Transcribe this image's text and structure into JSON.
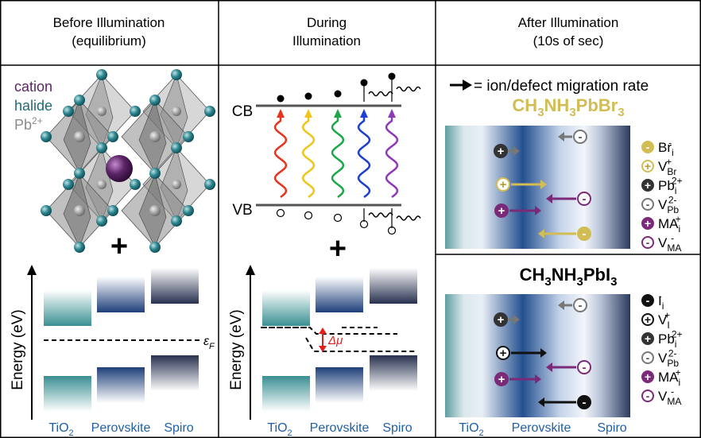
{
  "columns": [
    {
      "title": [
        "Before Illumination",
        "(equilibrium)"
      ]
    },
    {
      "title": [
        "During",
        "Illumination"
      ]
    },
    {
      "title": [
        "After Illumination",
        "(10s of sec)"
      ]
    }
  ],
  "crystal_labels": [
    {
      "base": "cation",
      "color": "#5b2466"
    },
    {
      "base": "halide",
      "color": "#1f6b74"
    },
    {
      "base": "Pb",
      "sup": "2+",
      "color": "#8a8a8a"
    }
  ],
  "plus": "+",
  "energy_axis_label": "Energy (eV)",
  "fermi_label": {
    "base": "ε",
    "sub": "F"
  },
  "layers": [
    {
      "base": "TiO",
      "sub": "2"
    },
    {
      "base": "Perovskite"
    },
    {
      "base": "Spiro"
    }
  ],
  "band_labels": [
    "CB",
    "VB"
  ],
  "delta_mu": "Δμ",
  "migration_key": "= ion/defect migration rate",
  "panels": [
    {
      "formula": [
        "CH",
        "3",
        "NH",
        "3",
        "PbBr",
        "3"
      ],
      "formula_color": "#d2bd55",
      "defects": [
        {
          "symbol": "-",
          "base": "Br",
          "sub": "i",
          "sup": "-",
          "fill": "#d2bd55",
          "stroke": "#d2bd55",
          "text_color": "#ffffff"
        },
        {
          "symbol": "+",
          "base": "V",
          "sub": "Br",
          "sup": "+",
          "fill": "#ffffff",
          "stroke": "#d2bd55",
          "text_color": "#b59c2e"
        },
        {
          "symbol": "+",
          "base": "Pb",
          "sub": "i",
          "sup": "2+",
          "fill": "#333333",
          "stroke": "#333333",
          "text_color": "#ffffff"
        },
        {
          "symbol": "-",
          "base": "V",
          "sub": "Pb",
          "sup": "2-",
          "fill": "#ffffff",
          "stroke": "#777777",
          "text_color": "#555555"
        },
        {
          "symbol": "+",
          "base": "MA",
          "sub": "i",
          "sup": "+",
          "fill": "#7a2a78",
          "stroke": "#7a2a78",
          "text_color": "#ffffff"
        },
        {
          "symbol": "-",
          "base": "V",
          "sub": "MA",
          "sup": "-",
          "fill": "#ffffff",
          "stroke": "#7a2a78",
          "text_color": "#7a2a78"
        }
      ]
    },
    {
      "formula": [
        "CH",
        "3",
        "NH",
        "3",
        "PbI",
        "3"
      ],
      "formula_color": "#000000",
      "defects": [
        {
          "symbol": "-",
          "base": "I",
          "sub": "i",
          "sup": "-",
          "fill": "#111111",
          "stroke": "#111111",
          "text_color": "#ffffff"
        },
        {
          "symbol": "+",
          "base": "V",
          "sub": "I",
          "sup": "+",
          "fill": "#ffffff",
          "stroke": "#111111",
          "text_color": "#111111"
        },
        {
          "symbol": "+",
          "base": "Pb",
          "sub": "i",
          "sup": "2+",
          "fill": "#333333",
          "stroke": "#333333",
          "text_color": "#ffffff"
        },
        {
          "symbol": "-",
          "base": "V",
          "sub": "Pb",
          "sup": "2-",
          "fill": "#ffffff",
          "stroke": "#777777",
          "text_color": "#555555"
        },
        {
          "symbol": "+",
          "base": "MA",
          "sub": "i",
          "sup": "+",
          "fill": "#7a2a78",
          "stroke": "#7a2a78",
          "text_color": "#ffffff"
        },
        {
          "symbol": "-",
          "base": "V",
          "sub": "MA",
          "sup": "-",
          "fill": "#ffffff",
          "stroke": "#7a2a78",
          "text_color": "#7a2a78"
        }
      ]
    }
  ]
}
